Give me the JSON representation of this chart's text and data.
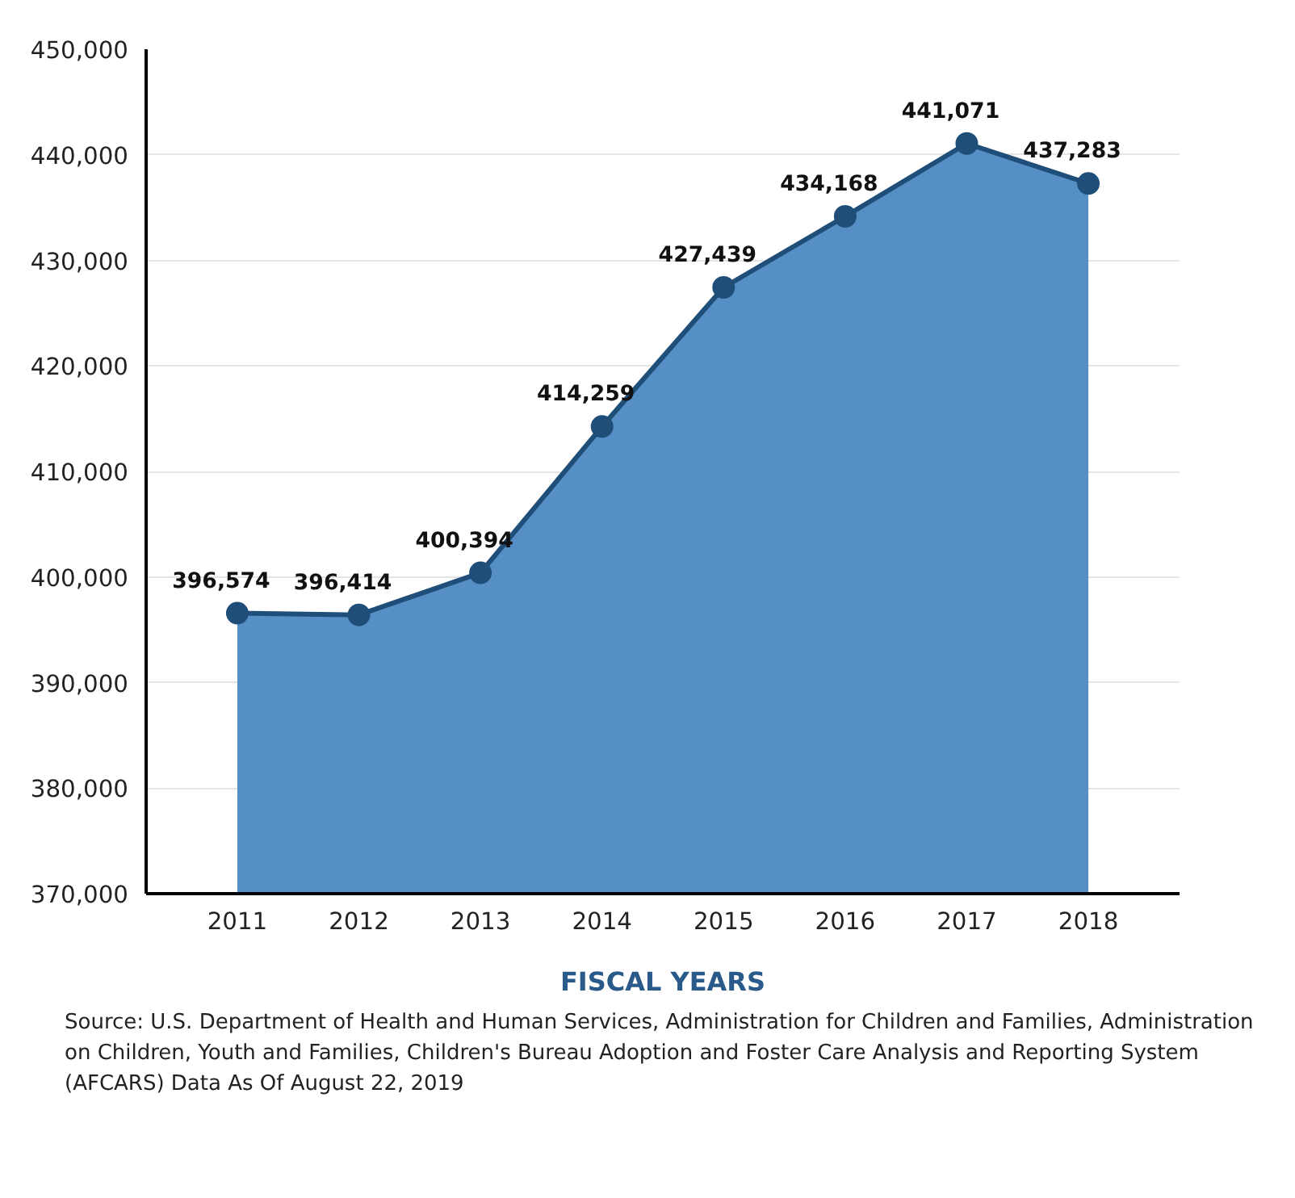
{
  "chart_data": {
    "type": "area",
    "categories": [
      "2011",
      "2012",
      "2013",
      "2014",
      "2015",
      "2016",
      "2017",
      "2018"
    ],
    "series": [
      {
        "color": "#558fc5",
        "values": [
          396574,
          396414,
          400394,
          414259,
          427439,
          434168,
          441071,
          437283
        ]
      }
    ],
    "xlabel": "FISCAL YEARS",
    "ylim": [
      370000,
      450000
    ],
    "yticks": [
      {
        "value": 370000,
        "label": "370,000"
      },
      {
        "value": 380000,
        "label": "380,000"
      },
      {
        "value": 390000,
        "label": "390,000"
      },
      {
        "value": 400000,
        "label": "400,000"
      },
      {
        "value": 410000,
        "label": "410,000"
      },
      {
        "value": 420000,
        "label": "420,000"
      },
      {
        "value": 430000,
        "label": "430,000"
      },
      {
        "value": 440000,
        "label": "440,000"
      },
      {
        "value": 450000,
        "label": "450,000"
      }
    ],
    "value_labels": [
      "396,574",
      "396,414",
      "400,394",
      "414,259",
      "427,439",
      "434,168",
      "441,071",
      "437,283"
    ],
    "annotations": [
      "Source: U.S. Department of Health and Human Services, Administration for Children and Families, Administration on Children, Youth and Families, Children's Bureau Adoption and Foster Care Analysis and Reporting System (AFCARS) Data As Of August 22, 2019"
    ],
    "grid": "y",
    "marker": "circle",
    "line_style": "solid"
  }
}
